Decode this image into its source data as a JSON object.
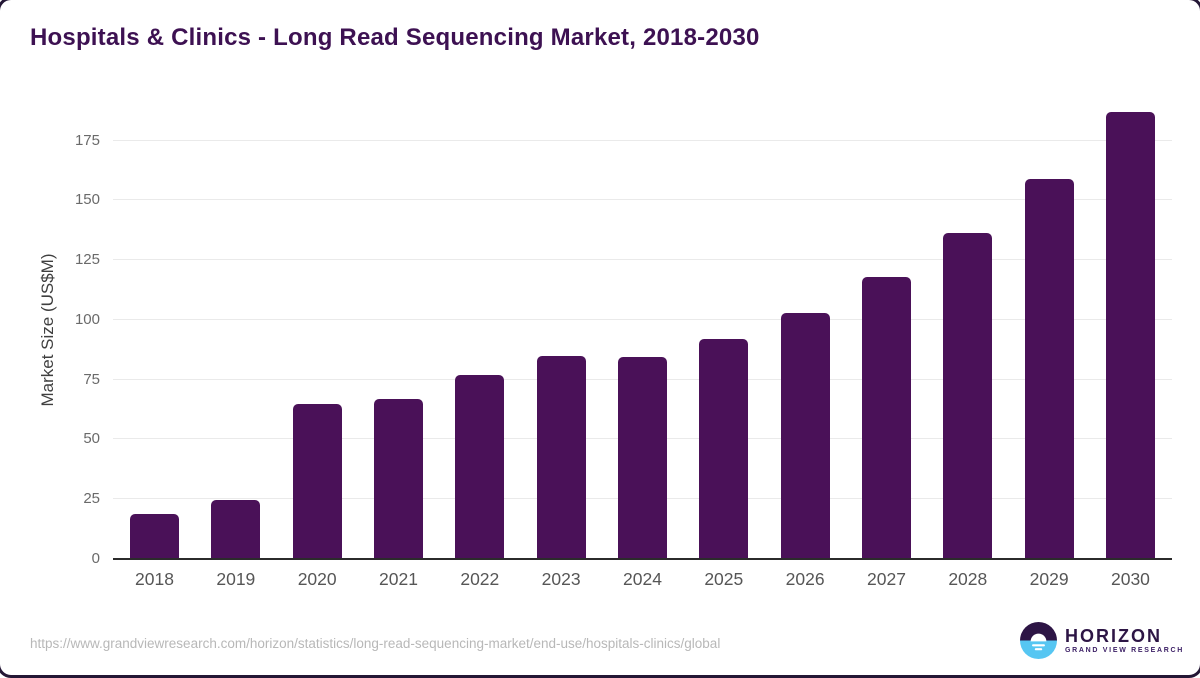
{
  "title": "Hospitals & Clinics - Long Read Sequencing Market, 2018-2030",
  "chart_data": {
    "type": "bar",
    "title": "Hospitals & Clinics - Long Read Sequencing Market, 2018-2030",
    "xlabel": "",
    "ylabel": "Market Size (US$M)",
    "categories": [
      "2018",
      "2019",
      "2020",
      "2021",
      "2022",
      "2023",
      "2024",
      "2025",
      "2026",
      "2027",
      "2028",
      "2029",
      "2030"
    ],
    "values": [
      19,
      24.8,
      65,
      67,
      77,
      85,
      84.5,
      92,
      103,
      118,
      136.5,
      159,
      187
    ],
    "yticks": [
      0,
      25,
      50,
      75,
      100,
      125,
      150,
      175
    ],
    "ylim": [
      0,
      192
    ],
    "grid": "horizontal",
    "legend": "none",
    "bar_color": "#4a1158"
  },
  "colors": {
    "bar": "#4a1158",
    "title_text": "#3d1152",
    "gridline": "#eaeaea",
    "axis_line": "#2b2b2b",
    "ytick_label": "#6a6a6a",
    "xtick_label": "#565656",
    "url_text": "#b8b8b8",
    "logo_purple": "#2d1545",
    "logo_blue": "#56c6f2"
  },
  "footer": {
    "source_url": "https://www.grandviewresearch.com/horizon/statistics/long-read-sequencing-market/end-use/hospitals-clinics/global",
    "logo": {
      "name": "HORIZON",
      "subtitle": "GRAND VIEW RESEARCH"
    }
  }
}
